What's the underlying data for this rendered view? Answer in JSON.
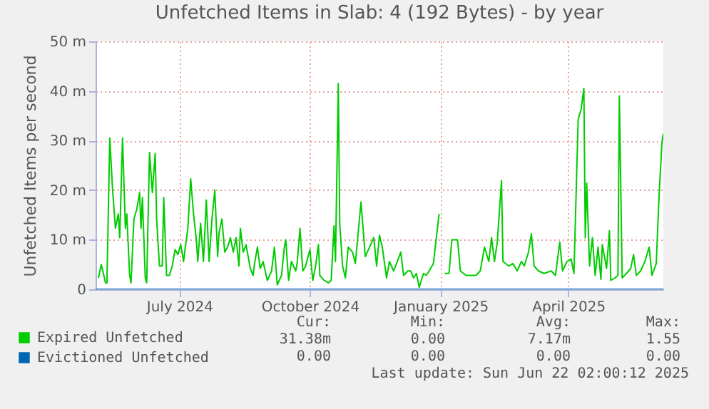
{
  "chart_data": {
    "type": "line",
    "title": "Unfetched Items in Slab: 4 (192 Bytes) - by year",
    "ylabel": "Unfetched Items per second",
    "xlim": [
      "2024-05-18",
      "2025-06-22"
    ],
    "xticks": [
      {
        "value": "2024-07-16",
        "label": "July 2024"
      },
      {
        "value": "2024-10-16",
        "label": "October 2024"
      },
      {
        "value": "2025-01-16",
        "label": "January 2025"
      },
      {
        "value": "2025-04-16",
        "label": "April 2025"
      }
    ],
    "ylim": [
      0,
      50
    ],
    "yticks": [
      {
        "value": 0,
        "label": "0"
      },
      {
        "value": 10,
        "label": "10 m"
      },
      {
        "value": 20,
        "label": "20 m"
      },
      {
        "value": 30,
        "label": "30 m"
      },
      {
        "value": 40,
        "label": "40 m"
      },
      {
        "value": 50,
        "label": "50 m"
      }
    ],
    "grid": true,
    "legend": "bottom left",
    "series": [
      {
        "name": "Expired Unfetched",
        "color": "#00cc00",
        "x": [
          "2024-05-20",
          "2024-05-22",
          "2024-05-25",
          "2024-05-26",
          "2024-05-28",
          "2024-05-30",
          "2024-06-01",
          "2024-06-03",
          "2024-06-04",
          "2024-06-06",
          "2024-06-08",
          "2024-06-09",
          "2024-06-11",
          "2024-06-12",
          "2024-06-14",
          "2024-06-16",
          "2024-06-18",
          "2024-06-19",
          "2024-06-20",
          "2024-06-22",
          "2024-06-23",
          "2024-06-25",
          "2024-06-27",
          "2024-06-29",
          "2024-06-30",
          "2024-07-02",
          "2024-07-04",
          "2024-07-05",
          "2024-07-07",
          "2024-07-09",
          "2024-07-11",
          "2024-07-13",
          "2024-07-15",
          "2024-07-17",
          "2024-07-19",
          "2024-07-20",
          "2024-07-22",
          "2024-07-24",
          "2024-07-26",
          "2024-07-28",
          "2024-07-29",
          "2024-07-31",
          "2024-08-02",
          "2024-08-04",
          "2024-08-06",
          "2024-08-08",
          "2024-08-10",
          "2024-08-12",
          "2024-08-13",
          "2024-08-15",
          "2024-08-17",
          "2024-08-19",
          "2024-08-21",
          "2024-08-23",
          "2024-08-25",
          "2024-08-27",
          "2024-08-28",
          "2024-08-30",
          "2024-09-01",
          "2024-09-04",
          "2024-09-06",
          "2024-09-07",
          "2024-09-09",
          "2024-09-11",
          "2024-09-13",
          "2024-09-16",
          "2024-09-19",
          "2024-09-21",
          "2024-09-23",
          "2024-09-26",
          "2024-09-28",
          "2024-09-29",
          "2024-10-01",
          "2024-10-03",
          "2024-10-06",
          "2024-10-07",
          "2024-10-09",
          "2024-10-11",
          "2024-10-13",
          "2024-10-16",
          "2024-10-18",
          "2024-10-20",
          "2024-10-22",
          "2024-10-23",
          "2024-10-26",
          "2024-10-29",
          "2024-10-31",
          "2024-11-02",
          "2024-11-03",
          "2024-11-05",
          "2024-11-06",
          "2024-11-08",
          "2024-11-10",
          "2024-11-12",
          "2024-11-15",
          "2024-11-17",
          "2024-11-21",
          "2024-11-24",
          "2024-11-27",
          "2024-11-30",
          "2024-12-02",
          "2024-12-04",
          "2024-12-06",
          "2024-12-09",
          "2024-12-11",
          "2024-12-14",
          "2024-12-16",
          "2024-12-19",
          "2024-12-21",
          "2024-12-24",
          "2024-12-26",
          "2024-12-28",
          "2024-12-30",
          "2025-01-01",
          "2025-01-04",
          "2025-01-06",
          "2025-01-09",
          "2025-01-11",
          "2025-01-15",
          "2025-01-17",
          "2025-01-19",
          "2025-01-22",
          "2025-01-24",
          "2025-01-28",
          "2025-01-30",
          "2025-02-03",
          "2025-02-07",
          "2025-02-10",
          "2025-02-13",
          "2025-02-16",
          "2025-02-19",
          "2025-02-21",
          "2025-02-23",
          "2025-02-25",
          "2025-02-28",
          "2025-03-01",
          "2025-03-05",
          "2025-03-08",
          "2025-03-11",
          "2025-03-14",
          "2025-03-16",
          "2025-03-19",
          "2025-03-21",
          "2025-03-23",
          "2025-03-26",
          "2025-03-30",
          "2025-04-04",
          "2025-04-07",
          "2025-04-10",
          "2025-04-12",
          "2025-04-15",
          "2025-04-18",
          "2025-04-20",
          "2025-04-23",
          "2025-04-25",
          "2025-04-27",
          "2025-04-28",
          "2025-04-29",
          "2025-05-01",
          "2025-05-03",
          "2025-05-05",
          "2025-05-07",
          "2025-05-09",
          "2025-05-10",
          "2025-05-13",
          "2025-05-15",
          "2025-05-16",
          "2025-05-19",
          "2025-05-21",
          "2025-05-22",
          "2025-05-24",
          "2025-05-27",
          "2025-05-30",
          "2025-06-01",
          "2025-06-03",
          "2025-06-06",
          "2025-06-09",
          "2025-06-12",
          "2025-06-14",
          "2025-06-17",
          "2025-06-19",
          "2025-06-21",
          "2025-06-22"
        ],
        "values": [
          2.3,
          5,
          1.3,
          1.3,
          30.5,
          20,
          12.3,
          15.2,
          10.4,
          30.5,
          12.3,
          15.2,
          2.8,
          1.3,
          14.2,
          16.1,
          19.5,
          12.3,
          18.5,
          2.3,
          1.3,
          27.6,
          19.5,
          27.4,
          14.2,
          4.7,
          4.7,
          18.5,
          2.8,
          2.8,
          4.7,
          8,
          7,
          9,
          5.6,
          8,
          12.3,
          22.3,
          15.2,
          10,
          5.6,
          13.3,
          5.6,
          18,
          5.6,
          14.2,
          20,
          6.6,
          11.4,
          14.2,
          7.5,
          8.5,
          10.4,
          7.5,
          10.4,
          4.7,
          12.3,
          7.5,
          9,
          4.2,
          2.8,
          5.2,
          8.5,
          4.2,
          5.6,
          1.8,
          3.7,
          8.5,
          0.9,
          2.8,
          8.5,
          10,
          1.8,
          5.6,
          3.7,
          5.2,
          12.3,
          3.7,
          4.7,
          8,
          1.8,
          4.7,
          9,
          2.8,
          1.8,
          1.3,
          1.8,
          12.8,
          5.6,
          41.5,
          13.3,
          4.7,
          2.3,
          8.5,
          7.5,
          5.2,
          17.6,
          6.6,
          8.5,
          10.4,
          4.7,
          10.9,
          8.5,
          2.3,
          5.6,
          3.7,
          5.2,
          7.5,
          2.8,
          3.7,
          3.7,
          2.3,
          3.2,
          0.4,
          3.2,
          2.8,
          4.2,
          5.2,
          15.2,
          null,
          3.2,
          3.2,
          10,
          10,
          3.7,
          2.8,
          2.8,
          2.8,
          3.7,
          8.5,
          5.6,
          10.4,
          5.6,
          9.5,
          21.9,
          5.6,
          4.7,
          5.2,
          3.7,
          5.6,
          4.7,
          7.5,
          11.2,
          4.7,
          3.7,
          3.2,
          3.7,
          2.8,
          9.5,
          3.7,
          5.6,
          6.1,
          3.2,
          34.3,
          36.2,
          40.5,
          10.4,
          21.4,
          4.7,
          10.4,
          2.8,
          8.5,
          2,
          9,
          4.2,
          11.8,
          1.8,
          2.3,
          2.8,
          39,
          2.3,
          3.2,
          4.2,
          7,
          2.8,
          3.7,
          5.6,
          8.5,
          2.8,
          5.2,
          19,
          29.5,
          31.4
        ]
      },
      {
        "name": "Evictioned Unfetched",
        "color": "#0066b3",
        "x": [
          "2024-05-18",
          "2025-06-22"
        ],
        "values": [
          0,
          0
        ]
      }
    ],
    "annotations": [
      "Cur:",
      "Min:",
      "Avg:",
      "Max:",
      "31.38m",
      "0.00",
      "7.17m",
      "1.55",
      "0.00",
      "0.00",
      "0.00",
      "0.00",
      "Last update: Sun Jun 22 02:00:12 2025"
    ]
  }
}
